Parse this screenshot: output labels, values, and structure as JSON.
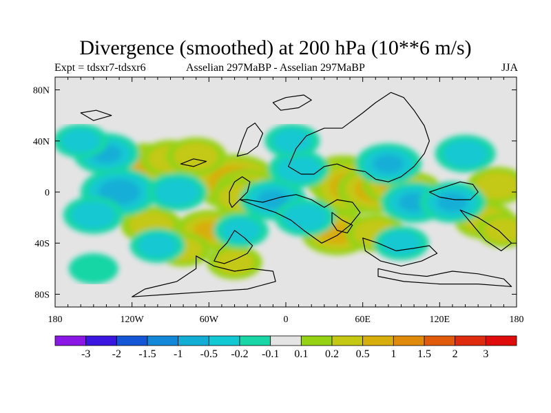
{
  "title": "Divergence (smoothed) at 200 hPa (10**6 m/s)",
  "subtitle_left": "Expt = tdsxr7-tdsxr6",
  "subtitle_center": "Asselian 297MaBP - Asselian 297MaBP",
  "subtitle_right": "JJA",
  "chart_data": {
    "type": "heatmap",
    "title": "Divergence (smoothed) at 200 hPa (10**6 m/s)",
    "variable": "divergence difference",
    "units": "10**6 m/s",
    "xlim": [
      -180,
      180
    ],
    "ylim": [
      -90,
      90
    ],
    "x_ticks": [
      {
        "value": -180,
        "label": "180"
      },
      {
        "value": -120,
        "label": "120W"
      },
      {
        "value": -60,
        "label": "60W"
      },
      {
        "value": 0,
        "label": "0"
      },
      {
        "value": 60,
        "label": "60E"
      },
      {
        "value": 120,
        "label": "120E"
      },
      {
        "value": 180,
        "label": "180"
      }
    ],
    "y_ticks": [
      {
        "value": 80,
        "label": "80N"
      },
      {
        "value": 40,
        "label": "40N"
      },
      {
        "value": 0,
        "label": "0"
      },
      {
        "value": -40,
        "label": "40S"
      },
      {
        "value": -80,
        "label": "80S"
      }
    ],
    "colorbar": {
      "levels": [
        "-3",
        "-2",
        "-1.5",
        "-1",
        "-0.5",
        "-0.2",
        "-0.1",
        "0.1",
        "0.2",
        "0.5",
        "1",
        "1.5",
        "2",
        "3"
      ],
      "colors": [
        "#8a17e6",
        "#3a16e0",
        "#1456d6",
        "#1488d8",
        "#12aed6",
        "#12c8d2",
        "#18d6a6",
        "#e4e4e4",
        "#96d214",
        "#c4c812",
        "#d8ae0c",
        "#e08a0c",
        "#e05a0c",
        "#e02c0e",
        "#e00c0c"
      ]
    },
    "features": [
      {
        "lon": -40,
        "lat": 8,
        "value": 1.0
      },
      {
        "lon": -30,
        "lat": 2,
        "value": 0.6
      },
      {
        "lon": -35,
        "lat": -4,
        "value": 0.5
      },
      {
        "lon": 45,
        "lat": 10,
        "value": 0.8
      },
      {
        "lon": 55,
        "lat": 4,
        "value": 1.0
      },
      {
        "lon": 70,
        "lat": 2,
        "value": 0.8
      },
      {
        "lon": 85,
        "lat": 6,
        "value": 0.6
      },
      {
        "lon": 100,
        "lat": 2,
        "value": 0.4
      },
      {
        "lon": -110,
        "lat": 22,
        "value": 0.6
      },
      {
        "lon": -90,
        "lat": 26,
        "value": 0.5
      },
      {
        "lon": -70,
        "lat": 28,
        "value": 0.5
      },
      {
        "lon": -105,
        "lat": -26,
        "value": 0.5
      },
      {
        "lon": -60,
        "lat": -30,
        "value": 0.6
      },
      {
        "lon": 40,
        "lat": -32,
        "value": 0.7
      },
      {
        "lon": 70,
        "lat": -32,
        "value": 0.5
      },
      {
        "lon": 155,
        "lat": -22,
        "value": 0.5
      },
      {
        "lon": 170,
        "lat": -30,
        "value": 0.4
      },
      {
        "lon": -80,
        "lat": -45,
        "value": 0.4
      },
      {
        "lon": -40,
        "lat": -55,
        "value": 0.4
      },
      {
        "lon": 165,
        "lat": 5,
        "value": 0.5
      },
      {
        "lon": -130,
        "lat": 0,
        "value": -0.8
      },
      {
        "lon": -150,
        "lat": -18,
        "value": -0.5
      },
      {
        "lon": -140,
        "lat": 30,
        "value": -0.6
      },
      {
        "lon": -160,
        "lat": 40,
        "value": -0.4
      },
      {
        "lon": -85,
        "lat": 0,
        "value": -0.5
      },
      {
        "lon": -10,
        "lat": -6,
        "value": -0.6
      },
      {
        "lon": 15,
        "lat": -20,
        "value": -0.5
      },
      {
        "lon": 10,
        "lat": 18,
        "value": -0.5
      },
      {
        "lon": 80,
        "lat": 22,
        "value": -0.6
      },
      {
        "lon": 100,
        "lat": -8,
        "value": -0.6
      },
      {
        "lon": 130,
        "lat": -8,
        "value": -0.6
      },
      {
        "lon": 140,
        "lat": 30,
        "value": -0.5
      },
      {
        "lon": -35,
        "lat": -30,
        "value": -0.4
      },
      {
        "lon": 90,
        "lat": -40,
        "value": -0.4
      },
      {
        "lon": -100,
        "lat": -42,
        "value": -0.4
      },
      {
        "lon": -150,
        "lat": -60,
        "value": -0.3
      },
      {
        "lon": 5,
        "lat": 40,
        "value": -0.4
      }
    ],
    "legend": "bottom colorbar"
  }
}
